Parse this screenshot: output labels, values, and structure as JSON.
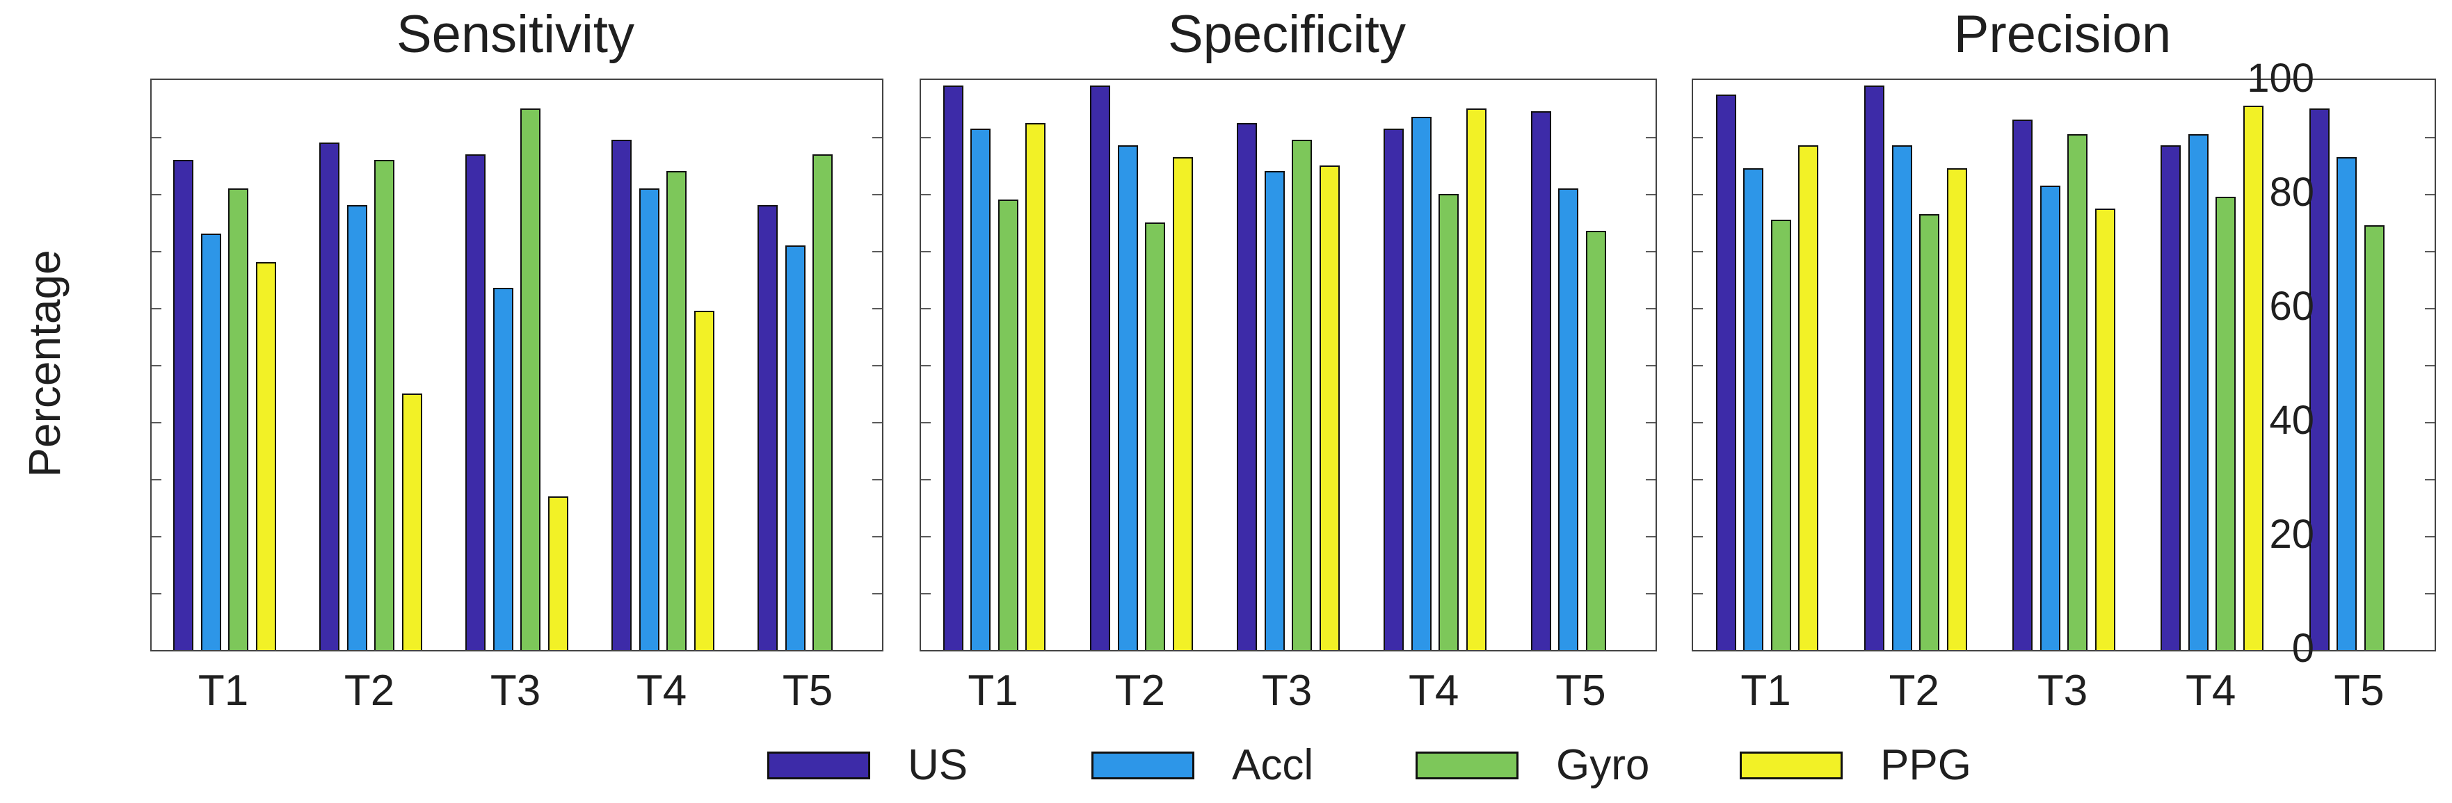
{
  "ylabel": "Percentage",
  "y_axis": {
    "min": 0,
    "max": 100,
    "tick_labels": [
      0,
      20,
      40,
      60,
      80,
      100
    ],
    "minor_tick_step": 10,
    "grid": false
  },
  "categories": [
    "T1",
    "T2",
    "T3",
    "T4",
    "T5"
  ],
  "legend": [
    {
      "label": "US",
      "color": "#3D2BA8"
    },
    {
      "label": "Accl",
      "color": "#2D96E8"
    },
    {
      "label": "Gyro",
      "color": "#7DC75A"
    },
    {
      "label": "PPG",
      "color": "#F2F126"
    }
  ],
  "colors": {
    "axis": "#434343",
    "text": "#1F1F1F",
    "bar_edge": "#101010",
    "background": "#FFFFFF"
  },
  "chart_data": [
    {
      "type": "bar",
      "title": "Sensitivity",
      "categories": [
        "T1",
        "T2",
        "T3",
        "T4",
        "T5"
      ],
      "xlabel": "",
      "ylabel": "Percentage",
      "ylim": [
        0,
        100
      ],
      "grid": false,
      "legend_position": "bottom",
      "series": [
        {
          "name": "US",
          "values": [
            86,
            89,
            87,
            89.5,
            78
          ]
        },
        {
          "name": "Accl",
          "values": [
            73,
            78,
            63.5,
            81,
            71
          ]
        },
        {
          "name": "Gyro",
          "values": [
            81,
            86,
            95,
            84,
            87
          ]
        },
        {
          "name": "PPG",
          "values": [
            68,
            45,
            27,
            59.5,
            null
          ]
        }
      ]
    },
    {
      "type": "bar",
      "title": "Specificity",
      "categories": [
        "T1",
        "T2",
        "T3",
        "T4",
        "T5"
      ],
      "xlabel": "",
      "ylabel": "",
      "ylim": [
        0,
        100
      ],
      "grid": false,
      "legend_position": "bottom",
      "series": [
        {
          "name": "US",
          "values": [
            99,
            99,
            92.5,
            91.5,
            94.5
          ]
        },
        {
          "name": "Accl",
          "values": [
            91.5,
            88.5,
            84,
            93.5,
            81
          ]
        },
        {
          "name": "Gyro",
          "values": [
            79,
            75,
            89.5,
            80,
            73.5
          ]
        },
        {
          "name": "PPG",
          "values": [
            92.5,
            86.5,
            85,
            95,
            null
          ]
        }
      ]
    },
    {
      "type": "bar",
      "title": "Precision",
      "categories": [
        "T1",
        "T2",
        "T3",
        "T4",
        "T5"
      ],
      "xlabel": "",
      "ylabel": "",
      "ylim": [
        0,
        100
      ],
      "grid": false,
      "legend_position": "bottom",
      "series": [
        {
          "name": "US",
          "values": [
            97.5,
            99,
            93,
            88.5,
            95
          ]
        },
        {
          "name": "Accl",
          "values": [
            84.5,
            88.5,
            81.5,
            90.5,
            86.5
          ]
        },
        {
          "name": "Gyro",
          "values": [
            75.5,
            76.5,
            90.5,
            79.5,
            74.5
          ]
        },
        {
          "name": "PPG",
          "values": [
            88.5,
            84.5,
            77.5,
            95.5,
            null
          ]
        }
      ]
    }
  ]
}
